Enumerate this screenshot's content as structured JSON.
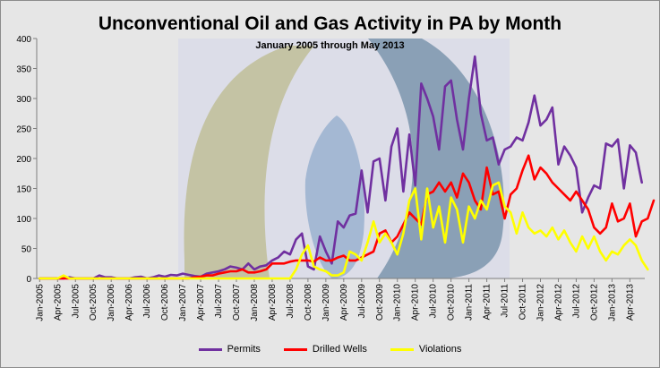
{
  "chart_data": {
    "type": "line",
    "title": "Unconventional Oil and Gas Activity in PA by Month",
    "subtitle": "January  2005 through May  2013",
    "xlabel": "",
    "ylabel": "",
    "ylim": [
      0,
      400
    ],
    "yticks": [
      0,
      50,
      100,
      150,
      200,
      250,
      300,
      350,
      400
    ],
    "grid": false,
    "legend_position": "bottom",
    "x_tick_labels": [
      "Jan-2005",
      "Apr-2005",
      "Jul-2005",
      "Oct-2005",
      "Jan-2006",
      "Apr-2006",
      "Jul-2006",
      "Oct-2006",
      "Jan-2007",
      "Apr-2007",
      "Jul-2007",
      "Oct-2007",
      "Jan-2008",
      "Apr-2008",
      "Jul-2008",
      "Oct-2008",
      "Jan-2009",
      "Apr-2009",
      "Jul-2009",
      "Oct-2009",
      "Jan-2010",
      "Apr-2010",
      "Jul-2010",
      "Oct-2010",
      "Jan-2011",
      "Apr-2011",
      "Jul-2011",
      "Oct-2011",
      "Jan-2012",
      "Apr-2012",
      "Jul-2012",
      "Oct-2012",
      "Jan-2013",
      "Apr-2013"
    ],
    "series": [
      {
        "name": "Permits",
        "color": "#7030a0",
        "values": [
          0,
          0,
          0,
          0,
          0,
          2,
          0,
          0,
          0,
          0,
          5,
          2,
          2,
          0,
          0,
          0,
          2,
          3,
          0,
          2,
          5,
          3,
          6,
          5,
          8,
          6,
          4,
          3,
          8,
          10,
          12,
          15,
          20,
          18,
          15,
          25,
          15,
          20,
          22,
          30,
          35,
          45,
          40,
          65,
          75,
          20,
          15,
          70,
          45,
          25,
          95,
          85,
          105,
          108,
          180,
          110,
          195,
          200,
          130,
          220,
          250,
          145,
          240,
          155,
          325,
          300,
          270,
          215,
          320,
          330,
          265,
          215,
          300,
          370,
          275,
          230,
          235,
          190,
          215,
          220,
          235,
          230,
          260,
          305,
          255,
          265,
          285,
          190,
          220,
          205,
          185,
          110,
          135,
          155,
          150,
          225,
          220,
          232,
          150,
          222,
          210,
          160
        ]
      },
      {
        "name": "Drilled Wells",
        "color": "#ff0000",
        "values": [
          0,
          0,
          0,
          0,
          0,
          0,
          0,
          0,
          0,
          0,
          0,
          0,
          0,
          0,
          0,
          0,
          0,
          0,
          0,
          0,
          0,
          0,
          0,
          0,
          0,
          0,
          2,
          3,
          5,
          5,
          8,
          10,
          12,
          12,
          15,
          10,
          10,
          12,
          15,
          25,
          25,
          25,
          28,
          30,
          30,
          30,
          28,
          35,
          30,
          30,
          35,
          38,
          30,
          30,
          35,
          40,
          45,
          75,
          80,
          60,
          70,
          90,
          110,
          100,
          90,
          140,
          145,
          160,
          145,
          160,
          135,
          175,
          160,
          130,
          115,
          185,
          140,
          145,
          100,
          140,
          150,
          180,
          205,
          165,
          185,
          175,
          160,
          150,
          140,
          130,
          145,
          130,
          115,
          85,
          75,
          85,
          125,
          95,
          100,
          125,
          70,
          95,
          100,
          130
        ]
      },
      {
        "name": "Violations",
        "color": "#ffff00",
        "values": [
          0,
          0,
          0,
          0,
          5,
          0,
          0,
          0,
          0,
          0,
          0,
          0,
          0,
          0,
          0,
          0,
          0,
          0,
          0,
          0,
          0,
          0,
          0,
          0,
          0,
          0,
          0,
          0,
          0,
          0,
          0,
          0,
          0,
          0,
          0,
          0,
          0,
          0,
          0,
          0,
          0,
          0,
          0,
          15,
          40,
          55,
          20,
          15,
          12,
          5,
          5,
          10,
          45,
          40,
          30,
          60,
          95,
          60,
          75,
          60,
          40,
          75,
          130,
          150,
          65,
          150,
          85,
          120,
          60,
          135,
          115,
          60,
          120,
          100,
          130,
          115,
          155,
          160,
          120,
          110,
          75,
          110,
          85,
          75,
          80,
          70,
          85,
          65,
          80,
          60,
          45,
          70,
          50,
          70,
          45,
          30,
          45,
          40,
          55,
          65,
          55,
          30,
          15
        ]
      }
    ]
  }
}
